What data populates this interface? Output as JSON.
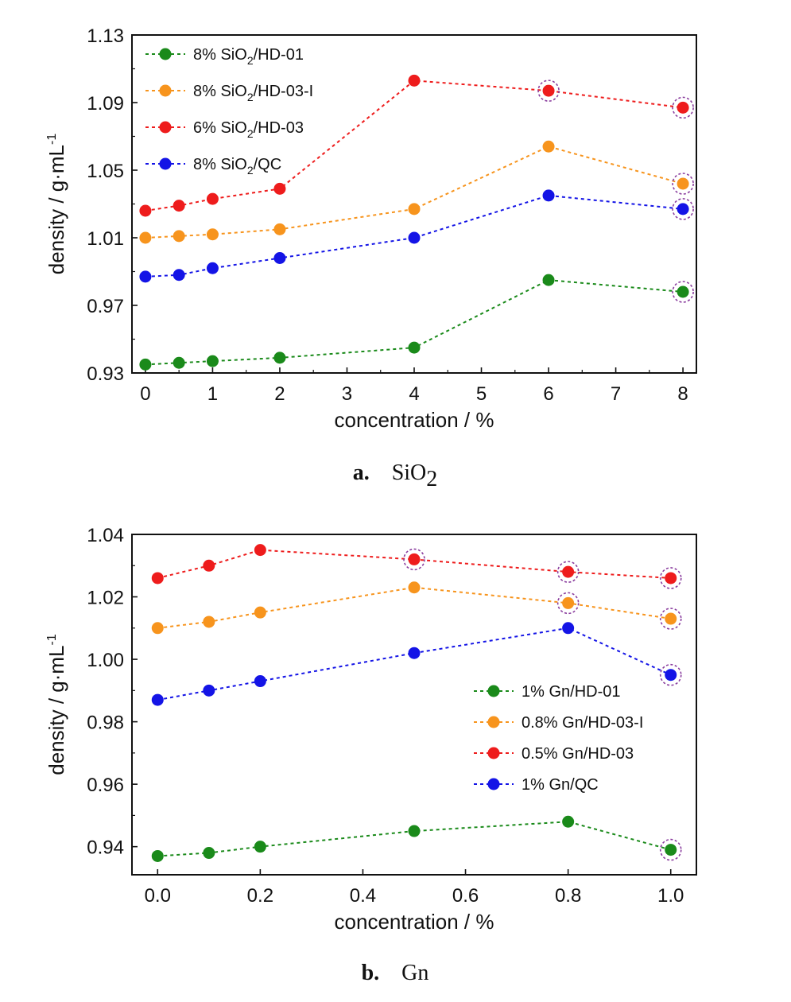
{
  "colors": {
    "green": "#1a8a1a",
    "orange": "#f7941d",
    "red": "#ee1c1c",
    "blue": "#1414e6",
    "highlight": "#8a3d9e"
  },
  "chart_data": [
    {
      "type": "line",
      "caption_letter": "a.",
      "caption_text": "SiO",
      "caption_sub": "2",
      "xlabel": "concentration / %",
      "ylabel_main": "density / g·mL",
      "ylabel_sup": "-1",
      "xlim": [
        -0.2,
        8.2
      ],
      "ylim": [
        0.93,
        1.13
      ],
      "xticks": [
        0,
        1,
        2,
        3,
        4,
        5,
        6,
        7,
        8
      ],
      "xtick_labels": [
        "0",
        "1",
        "2",
        "3",
        "4",
        "5",
        "6",
        "7",
        "8"
      ],
      "yticks": [
        0.93,
        0.97,
        1.01,
        1.05,
        1.09,
        1.13
      ],
      "ytick_labels": [
        "0.93",
        "0.97",
        "1.01",
        "1.05",
        "1.09",
        "1.13"
      ],
      "grid": false,
      "legend_position": "top-left",
      "x": [
        0,
        0.5,
        1,
        2,
        4,
        6,
        8
      ],
      "series": [
        {
          "color": "green",
          "legend_pre": "8% SiO",
          "legend_sub": "2",
          "legend_post": "/HD-01",
          "values": [
            0.935,
            0.936,
            0.937,
            0.939,
            0.945,
            0.985,
            0.978
          ],
          "highlighted": [
            8
          ]
        },
        {
          "color": "orange",
          "legend_pre": "8% SiO",
          "legend_sub": "2",
          "legend_post": "/HD-03-Ι",
          "values": [
            1.01,
            1.011,
            1.012,
            1.015,
            1.027,
            1.064,
            1.042
          ],
          "highlighted": [
            8
          ]
        },
        {
          "color": "red",
          "legend_pre": "6% SiO",
          "legend_sub": "2",
          "legend_post": "/HD-03",
          "values": [
            1.026,
            1.029,
            1.033,
            1.039,
            1.103,
            1.097,
            1.087
          ],
          "highlighted": [
            6,
            8
          ]
        },
        {
          "color": "blue",
          "legend_pre": "8% SiO",
          "legend_sub": "2",
          "legend_post": "/QC",
          "values": [
            0.987,
            0.988,
            0.992,
            0.998,
            1.01,
            1.035,
            1.027
          ],
          "highlighted": [
            8
          ]
        }
      ]
    },
    {
      "type": "line",
      "caption_letter": "b.",
      "caption_text": "Gn",
      "caption_sub": "",
      "xlabel": "concentration / %",
      "ylabel_main": "density / g·mL",
      "ylabel_sup": "-1",
      "xlim": [
        -0.05,
        1.05
      ],
      "ylim": [
        0.931,
        1.04
      ],
      "xticks": [
        0.0,
        0.2,
        0.4,
        0.6,
        0.8,
        1.0
      ],
      "xtick_labels": [
        "0.0",
        "0.2",
        "0.4",
        "0.6",
        "0.8",
        "1.0"
      ],
      "yticks": [
        0.94,
        0.96,
        0.98,
        1.0,
        1.02,
        1.04
      ],
      "ytick_labels": [
        "0.94",
        "0.96",
        "0.98",
        "1.00",
        "1.02",
        "1.04"
      ],
      "grid": false,
      "legend_position": "center-right",
      "x": [
        0.0,
        0.1,
        0.2,
        0.5,
        0.8,
        1.0
      ],
      "series": [
        {
          "color": "green",
          "legend_pre": "1% Gn/HD-01",
          "legend_sub": "",
          "legend_post": "",
          "values": [
            0.937,
            0.938,
            0.94,
            0.945,
            0.948,
            0.939
          ],
          "highlighted": [
            1.0
          ]
        },
        {
          "color": "orange",
          "legend_pre": "0.8% Gn/HD-03-Ι",
          "legend_sub": "",
          "legend_post": "",
          "values": [
            1.01,
            1.012,
            1.015,
            1.023,
            1.018,
            1.013
          ],
          "highlighted": [
            0.8,
            1.0
          ]
        },
        {
          "color": "red",
          "legend_pre": "0.5% Gn/HD-03",
          "legend_sub": "",
          "legend_post": "",
          "values": [
            1.026,
            1.03,
            1.035,
            1.032,
            1.028,
            1.026
          ],
          "highlighted": [
            0.5,
            0.8,
            1.0
          ]
        },
        {
          "color": "blue",
          "legend_pre": "1% Gn/QC",
          "legend_sub": "",
          "legend_post": "",
          "values": [
            0.987,
            0.99,
            0.993,
            1.002,
            1.01,
            0.995
          ],
          "highlighted": [
            1.0
          ]
        }
      ]
    }
  ]
}
